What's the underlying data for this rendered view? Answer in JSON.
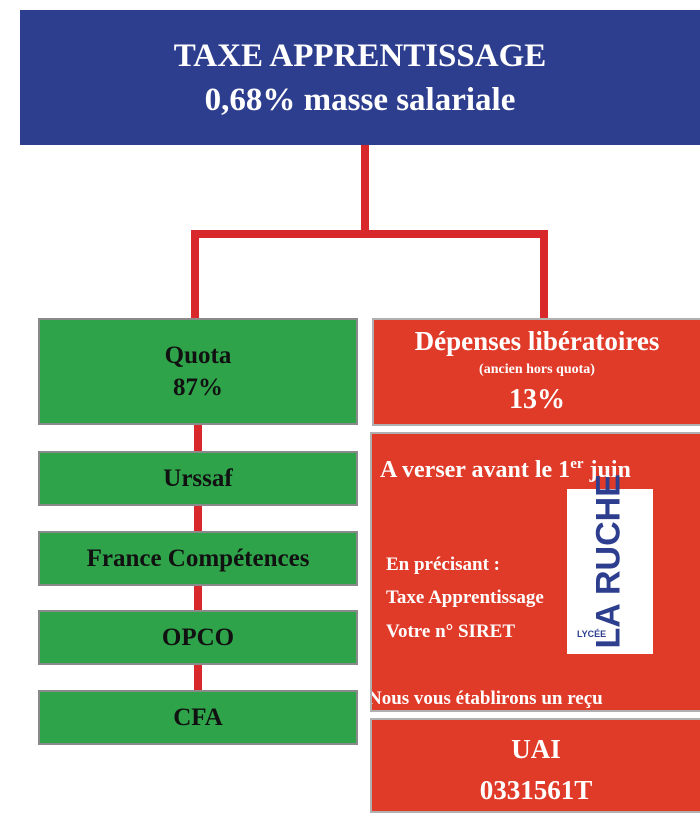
{
  "header": {
    "line1": "TAXE APPRENTISSAGE",
    "line2": "0,68% masse salariale"
  },
  "left_boxes": [
    {
      "line1": "Quota",
      "line2": "87%"
    },
    {
      "line1": "Urssaf"
    },
    {
      "line1": "France Compétences"
    },
    {
      "line1": "OPCO"
    },
    {
      "line1": "CFA"
    }
  ],
  "right_top": {
    "line1": "Dépenses libératoires",
    "line2": "(ancien hors quota)",
    "line3": "13%"
  },
  "right_middle": {
    "heading_before": "A verser avant le 1",
    "heading_sup": "er",
    "heading_after": " juin",
    "note_label": "En précisant :",
    "note_line1": "Taxe Apprentissage",
    "note_line2": "Votre n° SIRET",
    "footer": "Nous vous établirons un reçu"
  },
  "logo": {
    "name": "LA RUCHE",
    "subtitle": "LYCÉE"
  },
  "right_bottom": {
    "line1": "UAI",
    "line2": "0331561T"
  }
}
